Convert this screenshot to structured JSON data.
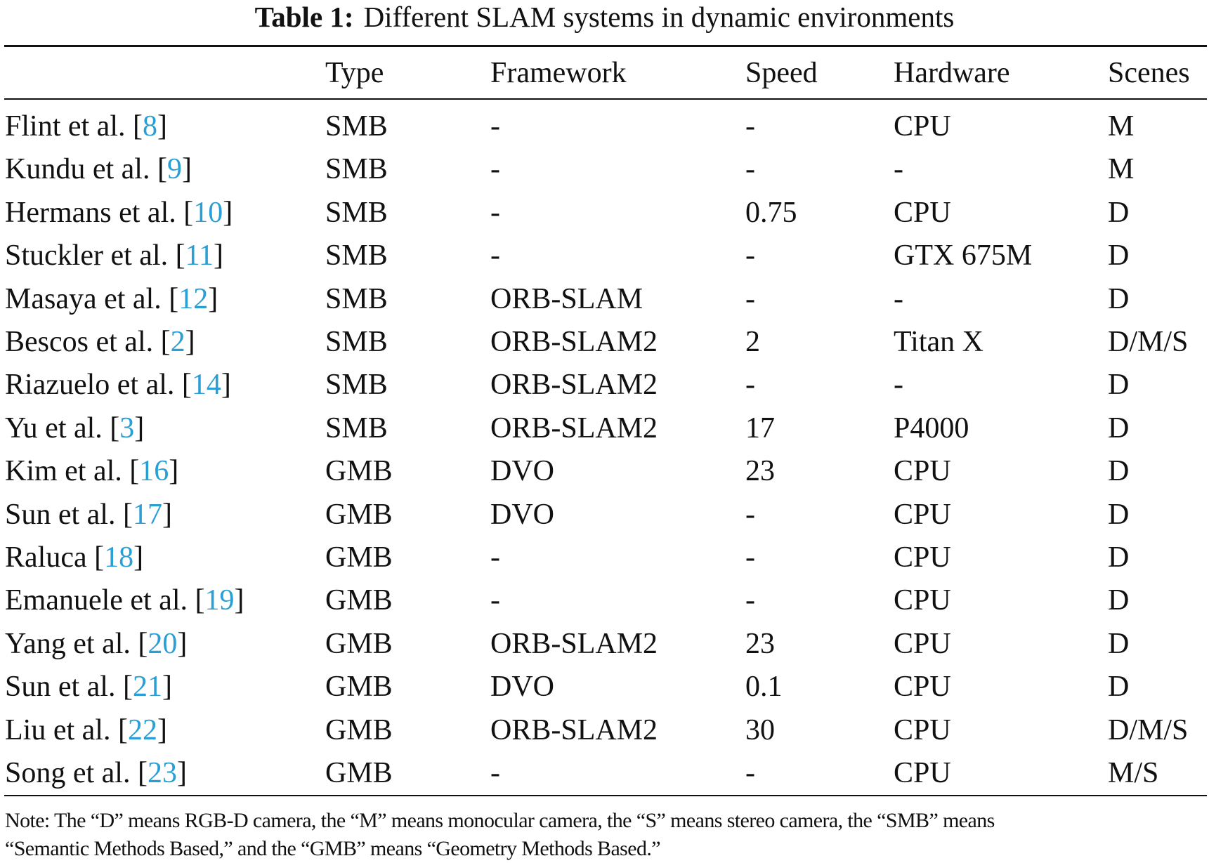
{
  "caption": {
    "label": "Table 1:",
    "text": "Different SLAM systems in dynamic environments"
  },
  "columns": [
    "",
    "Type",
    "Framework",
    "Speed",
    "Hardware",
    "Scenes"
  ],
  "rows": [
    {
      "name": "Flint et al. [",
      "ref": "8",
      "close": "]",
      "type": "SMB",
      "framework": "-",
      "speed": "-",
      "hardware": "CPU",
      "scenes": "M"
    },
    {
      "name": "Kundu et al. [",
      "ref": "9",
      "close": "]",
      "type": "SMB",
      "framework": "-",
      "speed": "-",
      "hardware": "-",
      "scenes": "M"
    },
    {
      "name": "Hermans et al. [",
      "ref": "10",
      "close": "]",
      "type": "SMB",
      "framework": "-",
      "speed": "0.75",
      "hardware": "CPU",
      "scenes": "D"
    },
    {
      "name": "Stuckler et al. [",
      "ref": "11",
      "close": "]",
      "type": "SMB",
      "framework": "-",
      "speed": "-",
      "hardware": "GTX 675M",
      "scenes": "D"
    },
    {
      "name": "Masaya et al. [",
      "ref": "12",
      "close": "]",
      "type": "SMB",
      "framework": "ORB-SLAM",
      "speed": "-",
      "hardware": "-",
      "scenes": "D"
    },
    {
      "name": "Bescos et al. [",
      "ref": "2",
      "close": "]",
      "type": "SMB",
      "framework": "ORB-SLAM2",
      "speed": "2",
      "hardware": "Titan X",
      "scenes": "D/M/S"
    },
    {
      "name": "Riazuelo et al. [",
      "ref": "14",
      "close": "]",
      "type": "SMB",
      "framework": "ORB-SLAM2",
      "speed": "-",
      "hardware": "-",
      "scenes": "D"
    },
    {
      "name": "Yu et al. [",
      "ref": "3",
      "close": "]",
      "type": "SMB",
      "framework": "ORB-SLAM2",
      "speed": "17",
      "hardware": "P4000",
      "scenes": "D"
    },
    {
      "name": "Kim et al. [",
      "ref": "16",
      "close": "]",
      "type": "GMB",
      "framework": "DVO",
      "speed": "23",
      "hardware": "CPU",
      "scenes": "D"
    },
    {
      "name": "Sun et al. [",
      "ref": "17",
      "close": "]",
      "type": "GMB",
      "framework": "DVO",
      "speed": "-",
      "hardware": "CPU",
      "scenes": "D"
    },
    {
      "name": "Raluca [",
      "ref": "18",
      "close": "]",
      "type": "GMB",
      "framework": "-",
      "speed": "-",
      "hardware": "CPU",
      "scenes": "D"
    },
    {
      "name": "Emanuele et al. [",
      "ref": "19",
      "close": "]",
      "type": "GMB",
      "framework": "-",
      "speed": "-",
      "hardware": "CPU",
      "scenes": "D"
    },
    {
      "name": "Yang et al. [",
      "ref": "20",
      "close": "]",
      "type": "GMB",
      "framework": "ORB-SLAM2",
      "speed": "23",
      "hardware": "CPU",
      "scenes": "D"
    },
    {
      "name": "Sun et al. [",
      "ref": "21",
      "close": "]",
      "type": "GMB",
      "framework": "DVO",
      "speed": "0.1",
      "hardware": "CPU",
      "scenes": "D"
    },
    {
      "name": "Liu et al. [",
      "ref": "22",
      "close": "]",
      "type": "GMB",
      "framework": "ORB-SLAM2",
      "speed": "30",
      "hardware": "CPU",
      "scenes": "D/M/S"
    },
    {
      "name": "Song et al. [",
      "ref": "23",
      "close": "]",
      "type": "GMB",
      "framework": "-",
      "speed": "-",
      "hardware": "CPU",
      "scenes": "M/S"
    }
  ],
  "note": {
    "line1": "Note: The “D” means RGB-D camera, the “M” means monocular camera, the “S” means stereo camera, the “SMB” means",
    "line2": "“Semantic Methods Based,” and the “GMB” means “Geometry Methods Based.”"
  },
  "colors": {
    "reference_link": "#2a9fd6",
    "text": "#111111"
  }
}
